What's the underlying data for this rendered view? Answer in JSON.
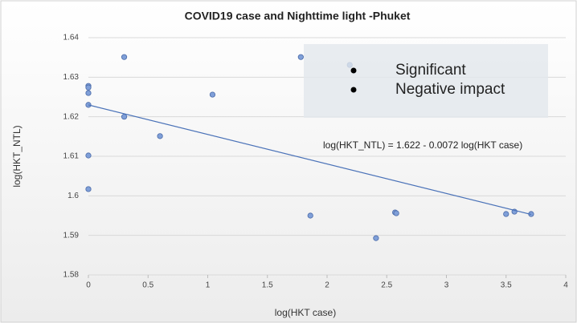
{
  "chart_data": {
    "type": "scatter",
    "title": "COVID19 case and Nighttime light -Phuket",
    "x_label": "log(HKT case)",
    "y_label": "log(HKT_NTL)",
    "series": [
      {
        "name": "log(HKT_NTL)",
        "color": "#7f9fd8",
        "x": [
          0,
          0,
          0,
          0,
          0,
          0,
          0.3,
          0.3,
          0.6,
          1.04,
          1.78,
          1.86,
          2.19,
          2.41,
          2.57,
          2.58,
          3.5,
          3.57,
          3.71
        ],
        "values": [
          1.6278,
          1.6274,
          1.626,
          1.623,
          1.6102,
          1.6017,
          1.6351,
          1.62,
          1.6151,
          1.6256,
          1.6351,
          1.595,
          1.6331,
          1.5893,
          1.5958,
          1.5956,
          1.5954,
          1.596,
          1.5954
        ]
      }
    ],
    "trendline": {
      "x": [
        0,
        3.71
      ],
      "y": [
        1.623,
        1.5953
      ],
      "color": "#4a72b8"
    },
    "annotations": [
      "Significant",
      "Negative impact"
    ],
    "equation": "log(HKT_NTL) = 1.622 - 0.0072 log(HKT case)",
    "xlim": [
      0,
      4
    ],
    "xticks": [
      0,
      0.5,
      1,
      1.5,
      2,
      2.5,
      3,
      3.5,
      4
    ],
    "ylim": [
      1.58,
      1.64
    ],
    "yticks": [
      1.58,
      1.59,
      1.6,
      1.61,
      1.62,
      1.63,
      1.64
    ],
    "grid": true
  }
}
